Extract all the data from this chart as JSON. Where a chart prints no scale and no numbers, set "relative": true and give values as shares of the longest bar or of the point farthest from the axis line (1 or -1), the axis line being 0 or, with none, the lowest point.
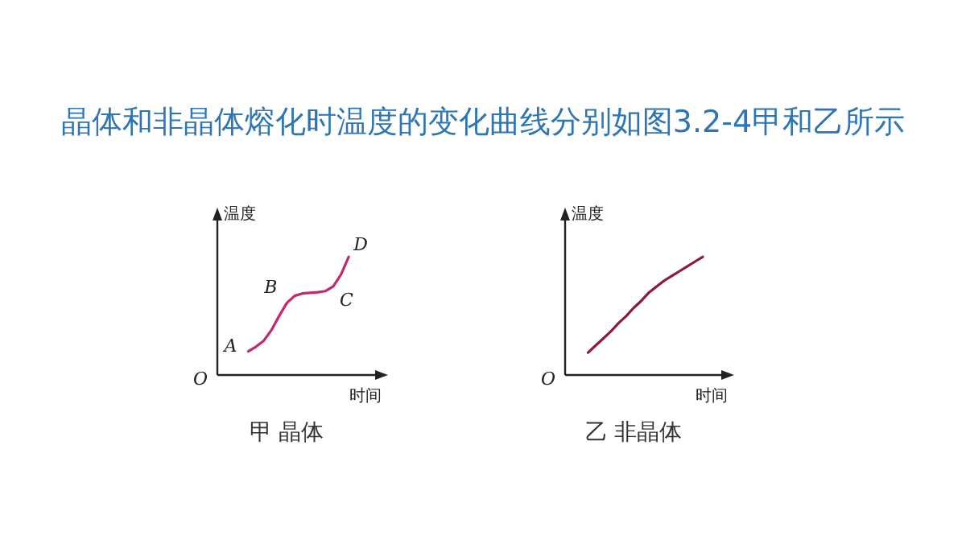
{
  "chart_data": [
    {
      "type": "line",
      "title": "晶体和非晶体熔化时温度的变化曲线分别如图3.2-4甲和乙所示",
      "subtitle": "甲 晶体",
      "xlabel": "时间",
      "ylabel": "温度",
      "relative": true,
      "marker": "none",
      "categories": [
        null,
        null,
        null,
        null,
        null,
        null,
        null,
        null,
        null,
        null,
        null,
        null,
        null,
        null,
        null,
        null,
        null,
        null,
        null,
        null,
        null
      ],
      "series": [
        {
          "color": "#c2286f",
          "values": [
            null,
            null,
            null,
            null,
            0.2,
            0.24,
            0.29,
            0.38,
            0.5,
            0.61,
            0.67,
            0.69,
            0.695,
            0.7,
            0.71,
            0.75,
            0.85,
            1.0,
            null,
            null,
            null
          ]
        }
      ],
      "annotations": [
        "O",
        "A",
        "B",
        "C",
        "D"
      ]
    },
    {
      "type": "line",
      "subtitle": "乙 非晶体",
      "xlabel": "时间",
      "ylabel": "温度",
      "relative": true,
      "marker": "none",
      "categories": [
        null,
        null,
        null,
        null,
        null,
        null,
        null,
        null,
        null,
        null,
        null,
        null,
        null,
        null,
        null,
        null,
        null,
        null,
        null,
        null,
        null
      ],
      "series": [
        {
          "color": "#8b1a40",
          "values": [
            null,
            null,
            null,
            0.19,
            0.25,
            0.31,
            0.37,
            0.44,
            0.5,
            0.57,
            0.63,
            0.7,
            0.75,
            0.8,
            0.84,
            0.88,
            0.92,
            0.96,
            1.0,
            null,
            null
          ]
        }
      ],
      "annotations": [
        "O"
      ]
    }
  ]
}
